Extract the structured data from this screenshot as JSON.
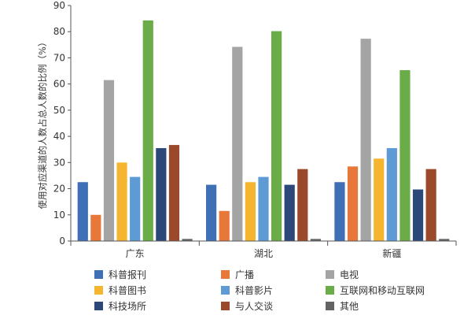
{
  "chart_data": {
    "type": "bar",
    "title": "",
    "xlabel": "",
    "ylabel": "使用对应渠道的人数占总人数的比例（%）",
    "ylim": [
      0,
      90
    ],
    "yticks": [
      0,
      10,
      20,
      30,
      40,
      50,
      60,
      70,
      80,
      90
    ],
    "grid": false,
    "legend_position": "bottom",
    "categories": [
      "广东",
      "湖北",
      "新疆"
    ],
    "series": [
      {
        "name": "科普报刊",
        "color": "#3f6fb5",
        "values": [
          22.5,
          21.5,
          22.5
        ]
      },
      {
        "name": "广播",
        "color": "#e8773a",
        "values": [
          10.0,
          11.5,
          28.5
        ]
      },
      {
        "name": "电视",
        "color": "#a4a4a4",
        "values": [
          61.5,
          74.2,
          77.3
        ]
      },
      {
        "name": "科普图书",
        "color": "#f6b52e",
        "values": [
          30.0,
          22.5,
          31.5
        ]
      },
      {
        "name": "科普影片",
        "color": "#5e9bd4",
        "values": [
          24.5,
          24.5,
          35.5
        ]
      },
      {
        "name": "互联网和移动互联网",
        "color": "#6aac47",
        "values": [
          84.3,
          80.2,
          65.3
        ]
      },
      {
        "name": "科技场所",
        "color": "#2b4878",
        "values": [
          35.5,
          21.5,
          19.7
        ]
      },
      {
        "name": "与人交谈",
        "color": "#9a4a2a",
        "values": [
          36.7,
          27.5,
          27.5
        ]
      },
      {
        "name": "其他",
        "color": "#636363",
        "values": [
          0.8,
          0.8,
          0.8
        ]
      }
    ]
  }
}
